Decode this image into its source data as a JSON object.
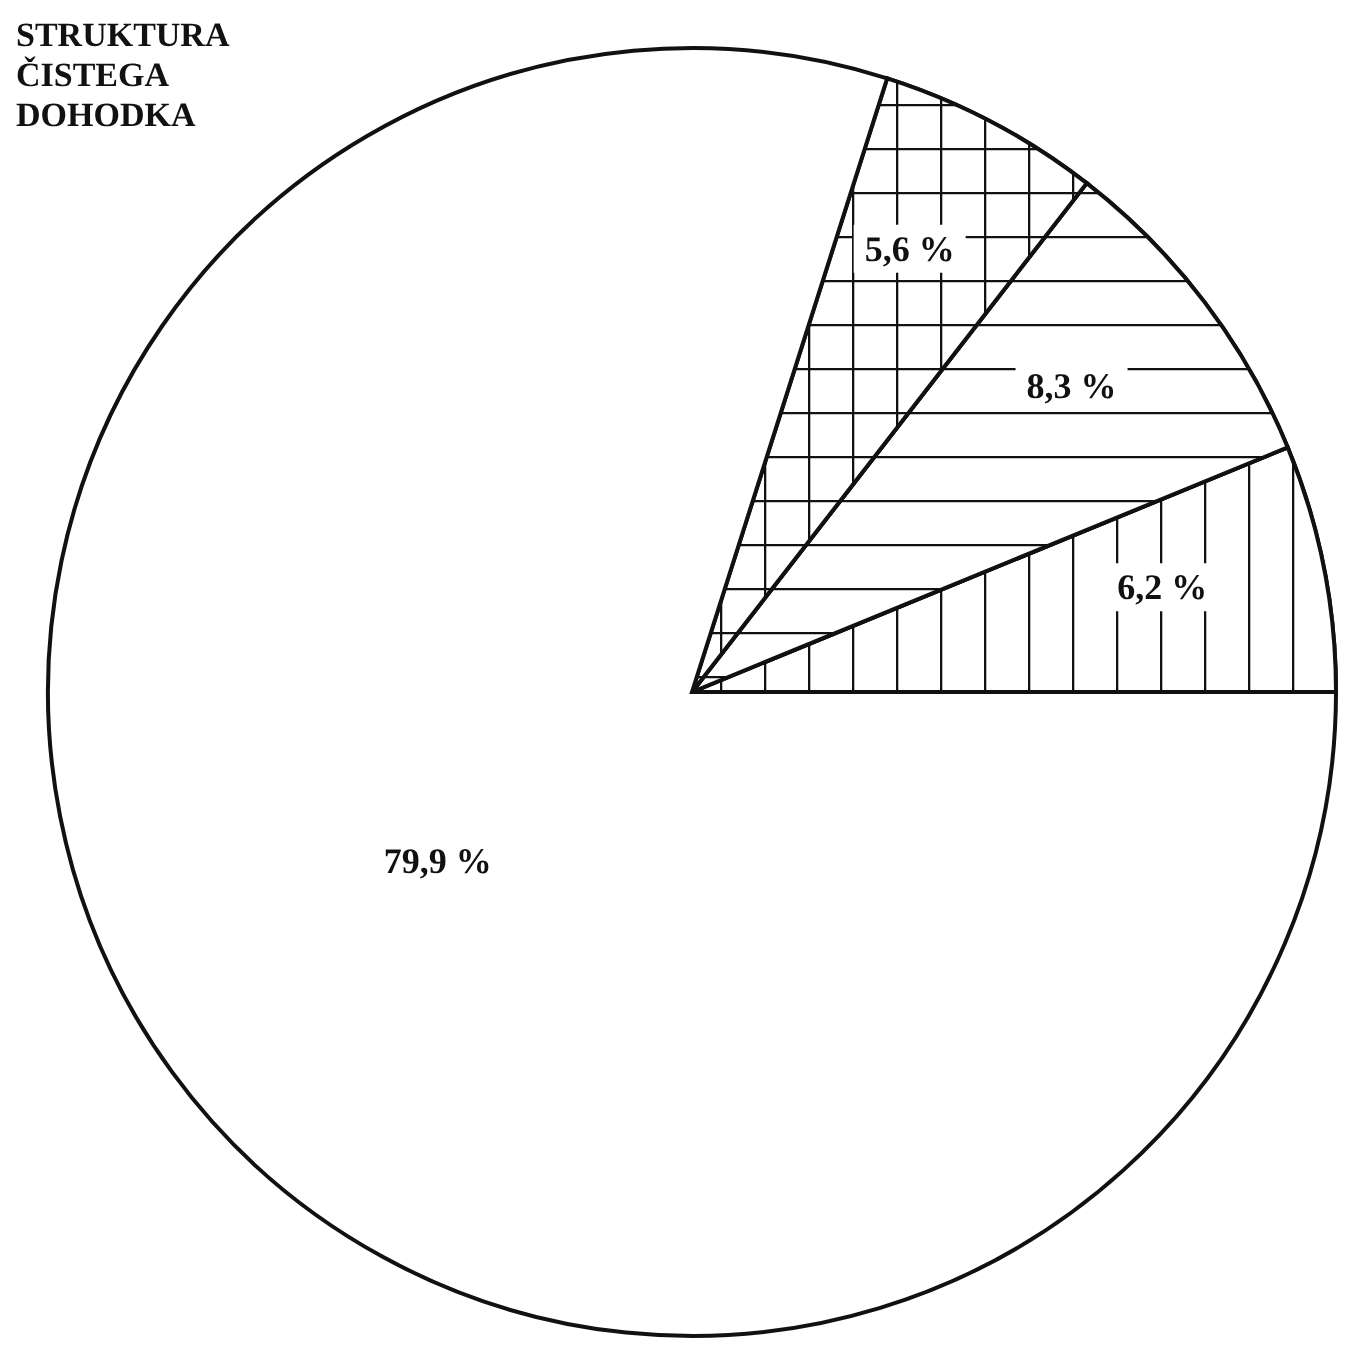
{
  "chart_data": {
    "type": "pie",
    "title": "STRUKTURA ČISTEGA DOHODKA",
    "categories": [
      null,
      null,
      null,
      null
    ],
    "values": [
      6.2,
      8.3,
      5.6,
      79.9
    ],
    "value_labels": [
      "6,2 %",
      "8,3 %",
      "5,6 %",
      "79,9 %"
    ],
    "colors": [
      "#ffffff",
      "#ffffff",
      "#ffffff",
      "#ffffff"
    ],
    "legend": false
  }
}
